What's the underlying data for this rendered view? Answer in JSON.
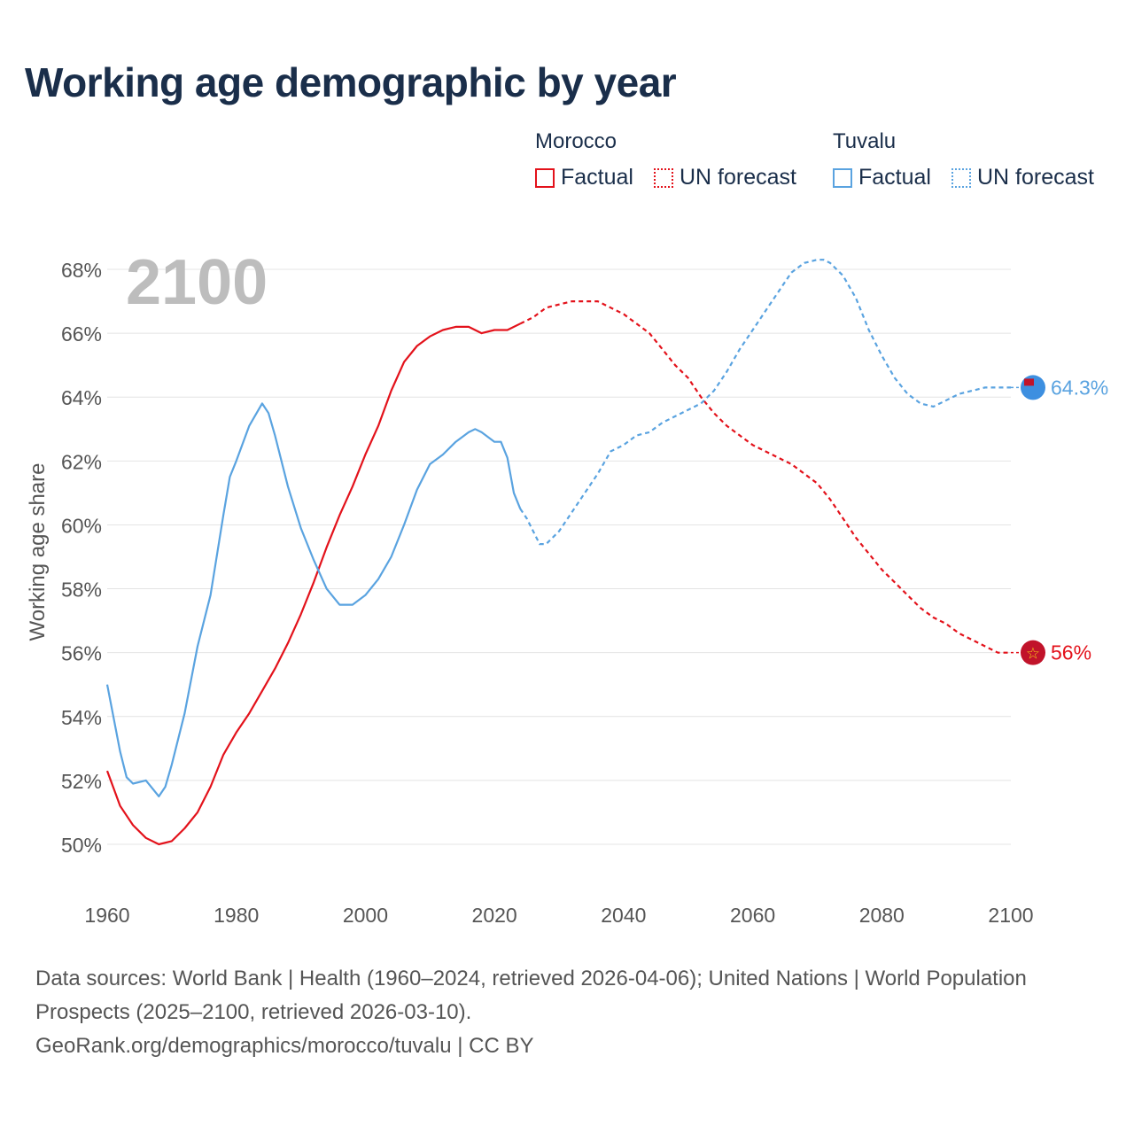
{
  "title": "Working age demographic by year",
  "legend": {
    "groups": [
      {
        "name": "Morocco",
        "factual": "Factual",
        "forecast": "UN forecast",
        "color": "#e3121b"
      },
      {
        "name": "Tuvalu",
        "factual": "Factual",
        "forecast": "UN forecast",
        "color": "#5aa3e0"
      }
    ]
  },
  "year_watermark": "2100",
  "footer": {
    "sources": "Data sources: World Bank | Health (1960–2024, retrieved 2026-04-06); United Nations | World Population Prospects (2025–2100, retrieved 2026-03-10).",
    "url": "GeoRank.org/demographics/morocco/tuvalu | CC BY"
  },
  "chart_data": {
    "type": "line",
    "title": "Working age demographic by year",
    "xlabel": "",
    "ylabel": "Working age share",
    "xlim": [
      1960,
      2100
    ],
    "ylim": [
      49,
      69
    ],
    "x_ticks": [
      1960,
      1980,
      2000,
      2020,
      2040,
      2060,
      2080,
      2100
    ],
    "y_ticks": [
      50,
      52,
      54,
      56,
      58,
      60,
      62,
      64,
      66,
      68
    ],
    "y_tick_labels": [
      "50%",
      "52%",
      "54%",
      "56%",
      "58%",
      "60%",
      "62%",
      "64%",
      "66%",
      "68%"
    ],
    "x_tick_labels": [
      "1960",
      "1980",
      "2000",
      "2020",
      "2040",
      "2060",
      "2080",
      "2100"
    ],
    "grid": true,
    "factual_end_year": 2024,
    "series": [
      {
        "name": "Morocco",
        "color": "#e3121b",
        "end_label": "56%",
        "x": [
          1960,
          1962,
          1964,
          1966,
          1968,
          1970,
          1972,
          1974,
          1976,
          1978,
          1980,
          1982,
          1984,
          1986,
          1988,
          1990,
          1992,
          1994,
          1996,
          1998,
          2000,
          2002,
          2004,
          2006,
          2008,
          2010,
          2012,
          2014,
          2016,
          2018,
          2020,
          2022,
          2024,
          2026,
          2028,
          2030,
          2032,
          2034,
          2036,
          2038,
          2040,
          2042,
          2044,
          2046,
          2048,
          2050,
          2052,
          2054,
          2056,
          2058,
          2060,
          2062,
          2064,
          2066,
          2068,
          2070,
          2072,
          2074,
          2076,
          2078,
          2080,
          2082,
          2084,
          2086,
          2088,
          2090,
          2092,
          2094,
          2096,
          2098,
          2100
        ],
        "values": [
          52.3,
          51.2,
          50.6,
          50.2,
          50.0,
          50.1,
          50.5,
          51.0,
          51.8,
          52.8,
          53.5,
          54.1,
          54.8,
          55.5,
          56.3,
          57.2,
          58.2,
          59.3,
          60.3,
          61.2,
          62.2,
          63.1,
          64.2,
          65.1,
          65.6,
          65.9,
          66.1,
          66.2,
          66.2,
          66.0,
          66.1,
          66.1,
          66.3,
          66.5,
          66.8,
          66.9,
          67.0,
          67.0,
          67.0,
          66.8,
          66.6,
          66.3,
          66.0,
          65.5,
          65.0,
          64.6,
          64.0,
          63.5,
          63.1,
          62.8,
          62.5,
          62.3,
          62.1,
          61.9,
          61.6,
          61.3,
          60.8,
          60.2,
          59.6,
          59.1,
          58.6,
          58.2,
          57.8,
          57.4,
          57.1,
          56.9,
          56.6,
          56.4,
          56.2,
          56.0,
          56.0
        ]
      },
      {
        "name": "Tuvalu",
        "color": "#5aa3e0",
        "end_label": "64.3%",
        "x": [
          1960,
          1962,
          1963,
          1964,
          1966,
          1968,
          1969,
          1970,
          1972,
          1974,
          1976,
          1978,
          1979,
          1980,
          1982,
          1984,
          1985,
          1986,
          1988,
          1990,
          1992,
          1994,
          1996,
          1998,
          2000,
          2002,
          2004,
          2006,
          2008,
          2010,
          2012,
          2014,
          2016,
          2017,
          2018,
          2020,
          2021,
          2022,
          2023,
          2024,
          2025,
          2026,
          2027,
          2028,
          2030,
          2032,
          2034,
          2036,
          2038,
          2040,
          2042,
          2044,
          2046,
          2048,
          2050,
          2052,
          2054,
          2056,
          2058,
          2060,
          2062,
          2064,
          2066,
          2068,
          2070,
          2071,
          2072,
          2074,
          2076,
          2078,
          2080,
          2082,
          2084,
          2086,
          2088,
          2090,
          2092,
          2094,
          2096,
          2098,
          2100
        ],
        "values": [
          55.0,
          52.9,
          52.1,
          51.9,
          52.0,
          51.5,
          51.8,
          52.5,
          54.1,
          56.2,
          57.8,
          60.3,
          61.5,
          62.0,
          63.1,
          63.8,
          63.5,
          62.8,
          61.2,
          59.9,
          58.9,
          58.0,
          57.5,
          57.5,
          57.8,
          58.3,
          59.0,
          60.0,
          61.1,
          61.9,
          62.2,
          62.6,
          62.9,
          63.0,
          62.9,
          62.6,
          62.6,
          62.1,
          61.0,
          60.5,
          60.2,
          59.8,
          59.4,
          59.4,
          59.8,
          60.4,
          61.0,
          61.6,
          62.3,
          62.5,
          62.8,
          62.9,
          63.2,
          63.4,
          63.6,
          63.8,
          64.2,
          64.8,
          65.5,
          66.1,
          66.7,
          67.3,
          67.9,
          68.2,
          68.3,
          68.3,
          68.2,
          67.8,
          67.1,
          66.1,
          65.3,
          64.6,
          64.1,
          63.8,
          63.7,
          63.9,
          64.1,
          64.2,
          64.3,
          64.3,
          64.3
        ]
      }
    ]
  }
}
